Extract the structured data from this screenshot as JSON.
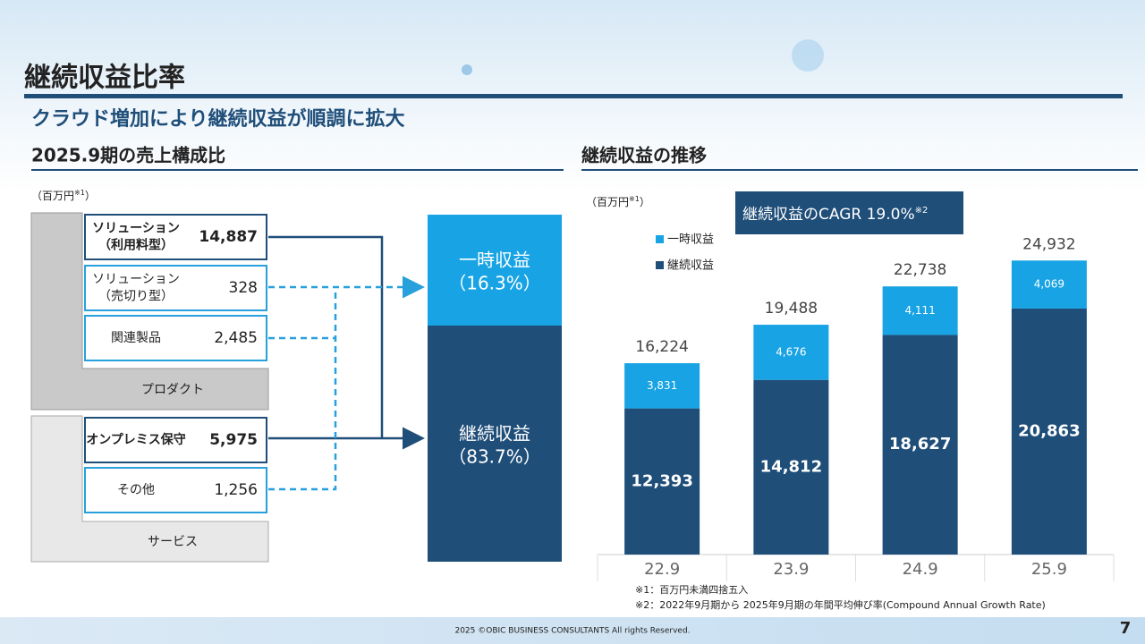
{
  "header": {
    "title": "継続収益比率",
    "subtitle": "クラウド増加により継続収益が順調に拡大"
  },
  "left": {
    "heading": "2025.9期の売上構成比",
    "unit_open": "（百万円",
    "unit_note": "※1",
    "unit_close": "）",
    "items": [
      {
        "label": [
          "ソリューション",
          "（利用料型）"
        ],
        "value": "14,887"
      },
      {
        "label": [
          "ソリューション",
          "（売切り型）"
        ],
        "value": "328"
      },
      {
        "label": [
          "関連製品"
        ],
        "value": "2,485"
      },
      {
        "label": [
          "オンプレミス保守"
        ],
        "value": "5,975"
      },
      {
        "label": [
          "その他"
        ],
        "value": "1,256"
      }
    ],
    "groups": [
      "プロダクト",
      "サービス"
    ],
    "results": [
      {
        "name": "一時収益",
        "share": "（16.3%）"
      },
      {
        "name": "継続収益",
        "share": "（83.7%）"
      }
    ]
  },
  "chart_data": {
    "type": "bar",
    "stacked": true,
    "title": "継続収益の推移",
    "unit_open": "（百万円",
    "unit_note": "※1",
    "unit_close": "）",
    "categories": [
      "22.9",
      "23.9",
      "24.9",
      "25.9"
    ],
    "series": [
      {
        "name": "継続収益",
        "color": "#1f4e79",
        "values": [
          12393,
          14812,
          18627,
          20863
        ],
        "value_labels": [
          "12,393",
          "14,812",
          "18,627",
          "20,863"
        ]
      },
      {
        "name": "一時収益",
        "color": "#17a3e4",
        "values": [
          3831,
          4676,
          4111,
          4069
        ],
        "value_labels": [
          "3,831",
          "4,676",
          "4,111",
          "4,069"
        ]
      }
    ],
    "totals": [
      16224,
      19488,
      22738,
      24932
    ],
    "total_labels": [
      "16,224",
      "19,488",
      "22,738",
      "24,932"
    ],
    "ylim": [
      0,
      27000
    ],
    "annotation": "継続収益のCAGR 19.0%",
    "annotation_note": "※2",
    "footnotes": [
      "※1：百万円未満四捨五入",
      "※2：2022年9月期から 2025年9月期の年間平均伸び率(Compound Annual Growth Rate)"
    ]
  },
  "footer": {
    "copyright": "2025 ©OBIC BUSINESS CONSULTANTS All rights Reserved.",
    "page": "7"
  }
}
